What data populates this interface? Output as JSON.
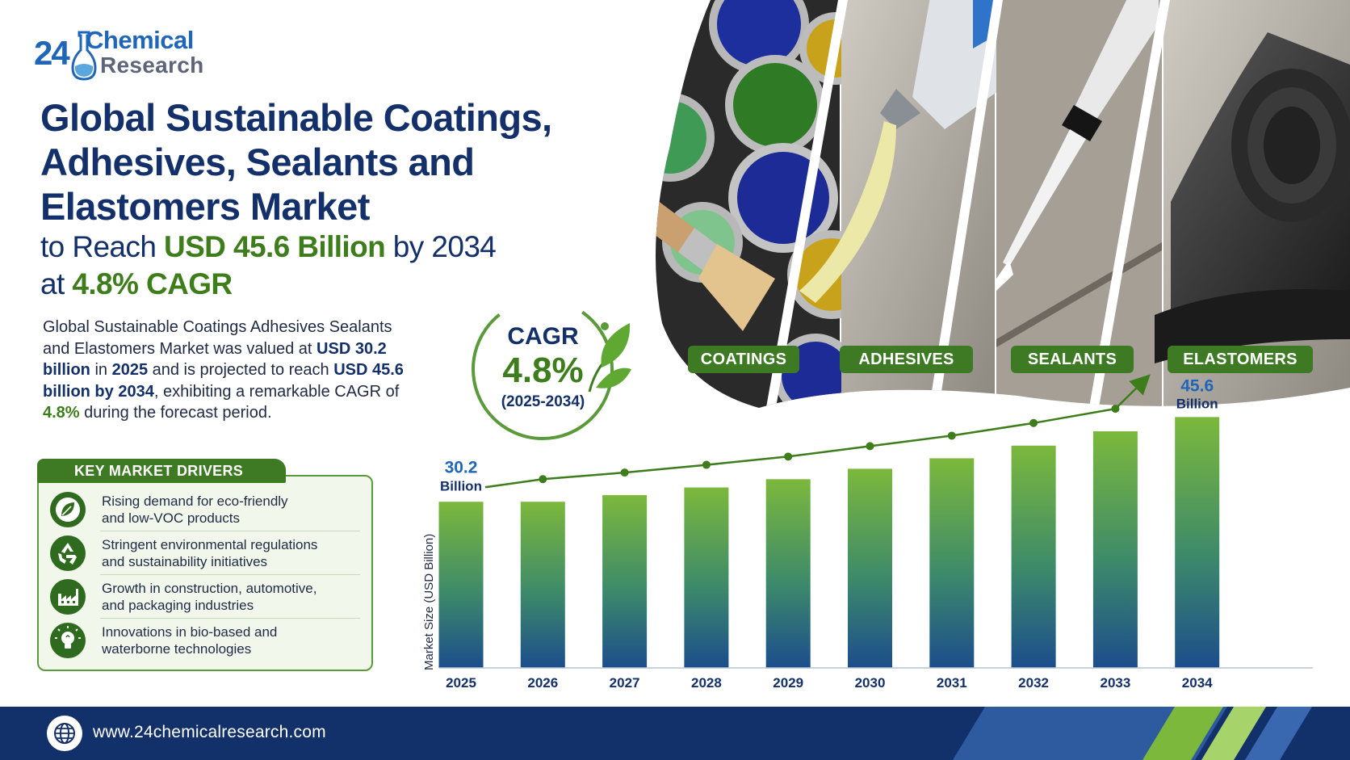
{
  "brand": {
    "number": "24",
    "name_line1": "Chemical",
    "name_line2": "Research"
  },
  "headline": {
    "line1": "Global Sustainable Coatings,",
    "line2": "Adhesives, Sealants and",
    "line3": "Elastomers Market",
    "sub1_pre": "to Reach ",
    "sub1_value": "USD 45.6 Billion",
    "sub1_post": " by 2034",
    "sub2_pre": "at ",
    "sub2_value": "4.8% CAGR"
  },
  "description": {
    "p1": "Global Sustainable Coatings Adhesives Sealants and Elastomers Market was valued at ",
    "v1": "USD 30.2 billion",
    "p2": " in ",
    "v2": "2025",
    "p3": " and is projected to reach ",
    "v3": "USD 45.6 billion by 2034",
    "p4": ", exhibiting a remarkable CAGR of ",
    "v4": "4.8%",
    "p5": " during the forecast period."
  },
  "cagr": {
    "label": "CAGR",
    "value": "4.8%",
    "period": "(2025-2034)"
  },
  "photo_tags": [
    "COATINGS",
    "ADHESIVES",
    "SEALANTS",
    "ELASTOMERS"
  ],
  "drivers": {
    "heading": "KEY MARKET DRIVERS",
    "items": [
      {
        "line1": "Rising demand for eco-friendly",
        "line2": "and low-VOC products",
        "icon": "leaf-icon"
      },
      {
        "line1": "Stringent environmental regulations",
        "line2": "and sustainability initiatives",
        "icon": "recycle-icon"
      },
      {
        "line1": "Growth in construction, automotive,",
        "line2": "and packaging industries",
        "icon": "factory-icon"
      },
      {
        "line1": "Innovations in bio-based and",
        "line2": "waterborne technologies",
        "icon": "lightbulb-icon"
      }
    ]
  },
  "chart_data": {
    "type": "bar",
    "categories": [
      "2025",
      "2026",
      "2027",
      "2028",
      "2029",
      "2030",
      "2031",
      "2032",
      "2033",
      "2034"
    ],
    "values": [
      30.2,
      30.2,
      31.4,
      32.8,
      34.3,
      36.2,
      38.1,
      40.4,
      43.0,
      45.6
    ],
    "ylabel": "Market Size (USD Billion)",
    "ylim": [
      0,
      48
    ],
    "start_label": {
      "value": "30.2",
      "unit": "Billion"
    },
    "end_label": {
      "value": "45.6",
      "unit": "Billion"
    },
    "trend_arrow": true,
    "grid": false,
    "colors": {
      "bar_top": "#7cb83c",
      "bar_bottom": "#1c4d8c",
      "trend": "#3d7d1b"
    }
  },
  "footer": {
    "url": "www.24chemicalresearch.com",
    "icon": "globe-icon"
  }
}
